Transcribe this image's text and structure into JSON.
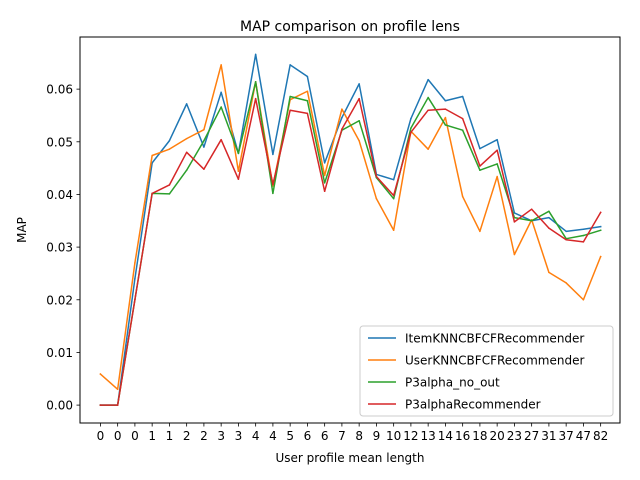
{
  "chart_data": {
    "type": "line",
    "title": "MAP comparison on profile lens",
    "xlabel": "User profile mean length",
    "ylabel": "MAP",
    "categories": [
      "0",
      "0",
      "0",
      "1",
      "1",
      "2",
      "2",
      "3",
      "3",
      "4",
      "4",
      "5",
      "6",
      "6",
      "7",
      "8",
      "9",
      "10",
      "12",
      "13",
      "14",
      "16",
      "18",
      "20",
      "23",
      "27",
      "31",
      "37",
      "47",
      "82"
    ],
    "ylim": [
      -0.0034,
      0.0699
    ],
    "yticks": [
      0.0,
      0.01,
      0.02,
      0.03,
      0.04,
      0.05,
      0.06
    ],
    "ytick_labels": [
      "0.00",
      "0.01",
      "0.02",
      "0.03",
      "0.04",
      "0.05",
      "0.06"
    ],
    "grid": false,
    "legend_position": "lower-right",
    "series": [
      {
        "name": "ItemKNNCBFCFRecommender",
        "color": "#1f77b4",
        "values": [
          0.0,
          0.0,
          0.024,
          0.046,
          0.0502,
          0.0572,
          0.049,
          0.0594,
          0.0478,
          0.0666,
          0.0476,
          0.0646,
          0.0624,
          0.046,
          0.0546,
          0.061,
          0.0438,
          0.0428,
          0.0544,
          0.0618,
          0.0578,
          0.0586,
          0.0487,
          0.0504,
          0.0365,
          0.035,
          0.0356,
          0.033,
          0.0334,
          0.0339
        ]
      },
      {
        "name": "UserKNNCBFCFRecommender",
        "color": "#ff7f0e",
        "values": [
          0.0059,
          0.003,
          0.027,
          0.0474,
          0.0486,
          0.0506,
          0.0523,
          0.0646,
          0.0444,
          0.0614,
          0.0416,
          0.058,
          0.0596,
          0.0436,
          0.0562,
          0.0502,
          0.0392,
          0.0332,
          0.052,
          0.0486,
          0.0546,
          0.0396,
          0.033,
          0.0434,
          0.0286,
          0.0352,
          0.0252,
          0.0232,
          0.02,
          0.0282
        ]
      },
      {
        "name": "P3alpha_no_out",
        "color": "#2ca02c",
        "values": [
          0.0,
          0.0,
          0.02,
          0.0402,
          0.0401,
          0.0446,
          0.0502,
          0.0566,
          0.0478,
          0.0614,
          0.0402,
          0.0586,
          0.0578,
          0.0422,
          0.0522,
          0.054,
          0.0432,
          0.0392,
          0.0526,
          0.0584,
          0.0532,
          0.0522,
          0.0446,
          0.0458,
          0.0356,
          0.035,
          0.0368,
          0.0316,
          0.0322,
          0.0332
        ]
      },
      {
        "name": "P3alphaRecommender",
        "color": "#d62728",
        "values": [
          0.0,
          0.0,
          0.02,
          0.0402,
          0.0418,
          0.048,
          0.0448,
          0.0504,
          0.0429,
          0.0582,
          0.0419,
          0.056,
          0.0554,
          0.0406,
          0.0524,
          0.0582,
          0.0434,
          0.0398,
          0.0518,
          0.056,
          0.0562,
          0.0544,
          0.0454,
          0.0484,
          0.0348,
          0.0372,
          0.0336,
          0.0314,
          0.031,
          0.0366
        ]
      }
    ]
  }
}
